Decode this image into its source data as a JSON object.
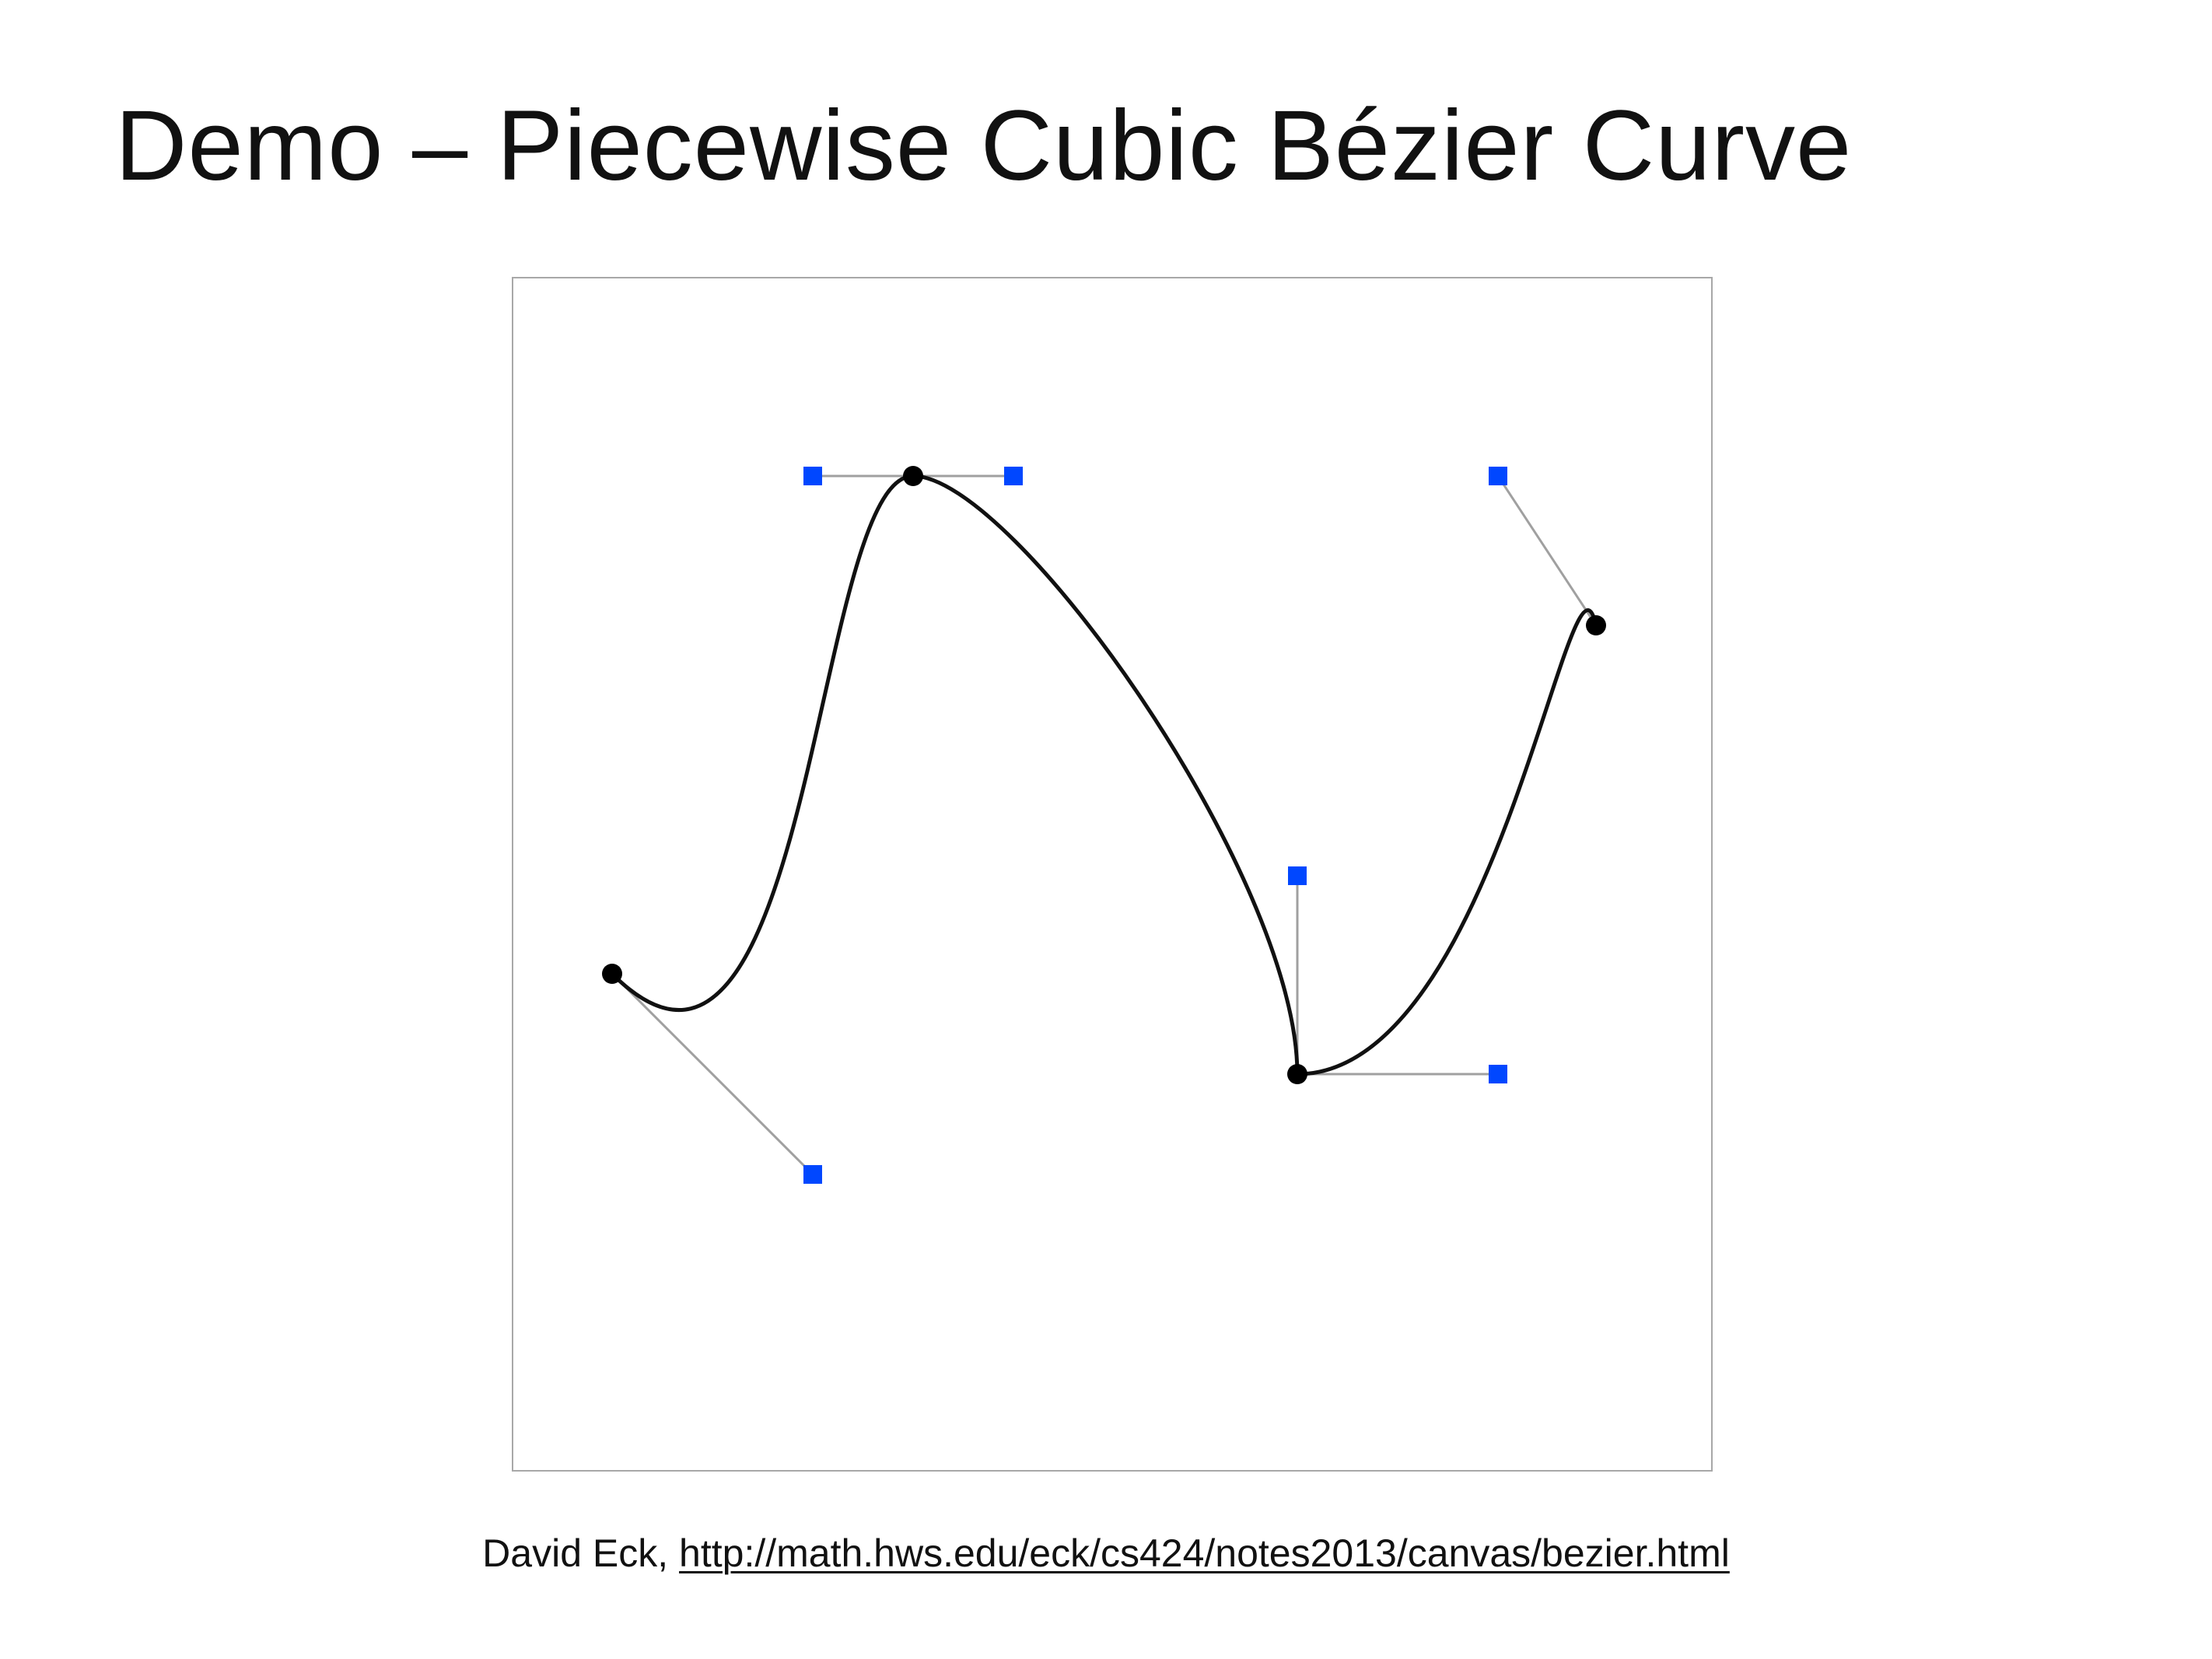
{
  "slide": {
    "title": "Demo – Piecewise Cubic Bézier Curve"
  },
  "credit": {
    "author": "David Eck,",
    "link_text": "http://math.hws.edu/eck/cs424/notes2013/canvas/bezier.html"
  },
  "colors": {
    "curve": "#111111",
    "anchor_point": "#000000",
    "control_point": "#0047ff",
    "control_line": "#a0a0a0",
    "canvas_border": "#a8a8a8"
  }
}
